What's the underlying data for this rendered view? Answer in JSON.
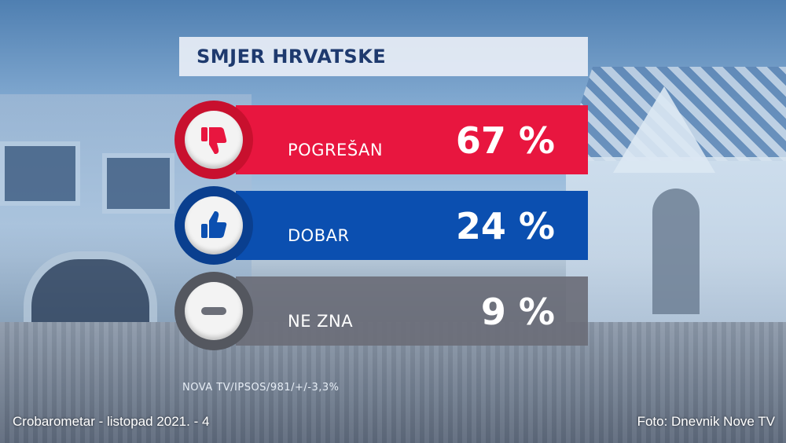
{
  "chart_data": {
    "type": "bar",
    "title": "SMJER HRVATSKE",
    "categories": [
      "POGREŠAN",
      "DOBAR",
      "NE ZNA"
    ],
    "values": [
      67,
      24,
      9
    ],
    "value_labels": [
      "67 %",
      "24 %",
      "9 %"
    ],
    "icons": [
      "thumbs-down-icon",
      "thumbs-up-icon",
      "minus-icon"
    ],
    "colors": [
      "#e8163f",
      "#0b4fb0",
      "#6b6e78"
    ],
    "ring_colors": [
      "#c8102e",
      "#0a3f8f",
      "#54575f"
    ],
    "unit": "%"
  },
  "source": "NOVA TV/IPSOS/981/+/-3,3%",
  "footer": {
    "left": "Crobarometar - listopad 2021. - 4",
    "right": "Foto: Dnevnik Nove TV"
  }
}
